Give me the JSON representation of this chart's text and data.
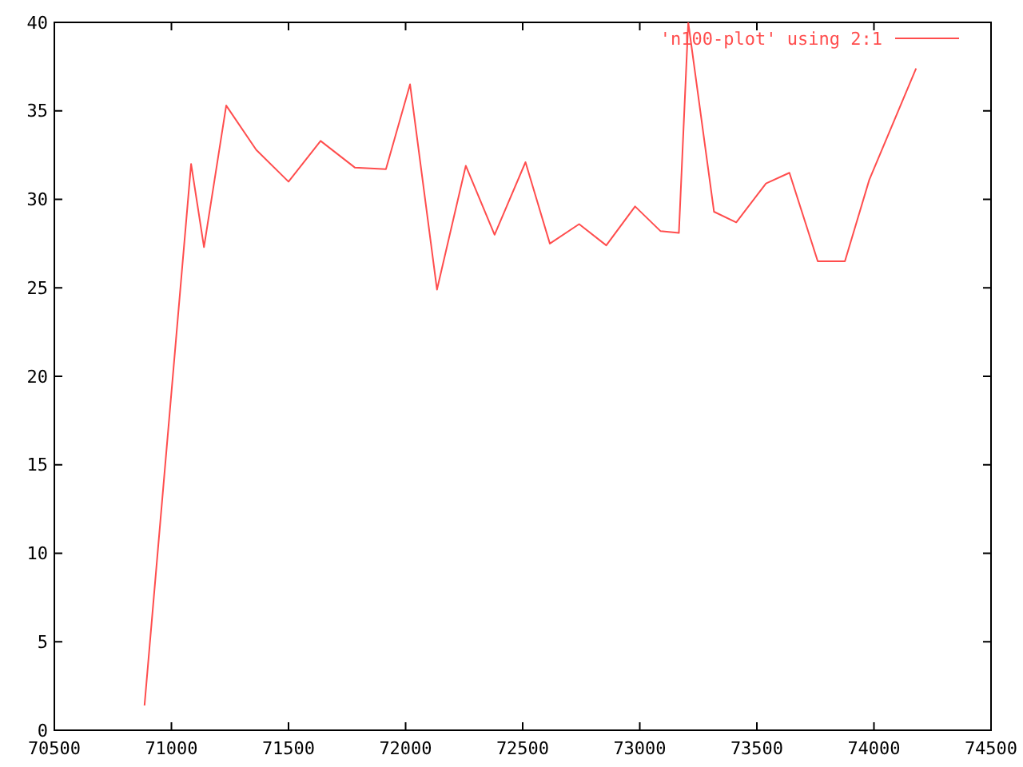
{
  "chart_data": {
    "type": "line",
    "xlim": [
      70500,
      74500
    ],
    "xticks": [
      70500,
      71000,
      71500,
      72000,
      72500,
      73000,
      73500,
      74000,
      74500
    ],
    "ylim": [
      0,
      40
    ],
    "yticks": [
      0,
      5,
      10,
      15,
      20,
      25,
      30,
      35,
      40
    ],
    "grid": false,
    "legend": "top right",
    "series": [
      {
        "name": "'n100-plot' using 2:1",
        "color": "#ff4d4d",
        "x": [
          70885,
          71084,
          71139,
          71234,
          71362,
          71500,
          71637,
          71783,
          71916,
          72019,
          72134,
          72257,
          72380,
          72512,
          72616,
          72741,
          72857,
          72980,
          73089,
          73167,
          73207,
          73317,
          73412,
          73539,
          73639,
          73760,
          73876,
          73980,
          74180
        ],
        "values": [
          1.4,
          32.0,
          27.3,
          35.3,
          32.8,
          31.0,
          33.3,
          31.8,
          31.7,
          36.5,
          24.9,
          31.9,
          28.0,
          32.1,
          27.5,
          28.6,
          27.4,
          29.6,
          28.2,
          28.1,
          40,
          29.3,
          28.7,
          30.9,
          31.5,
          26.5,
          26.5,
          31.1,
          37.4
        ]
      }
    ]
  }
}
